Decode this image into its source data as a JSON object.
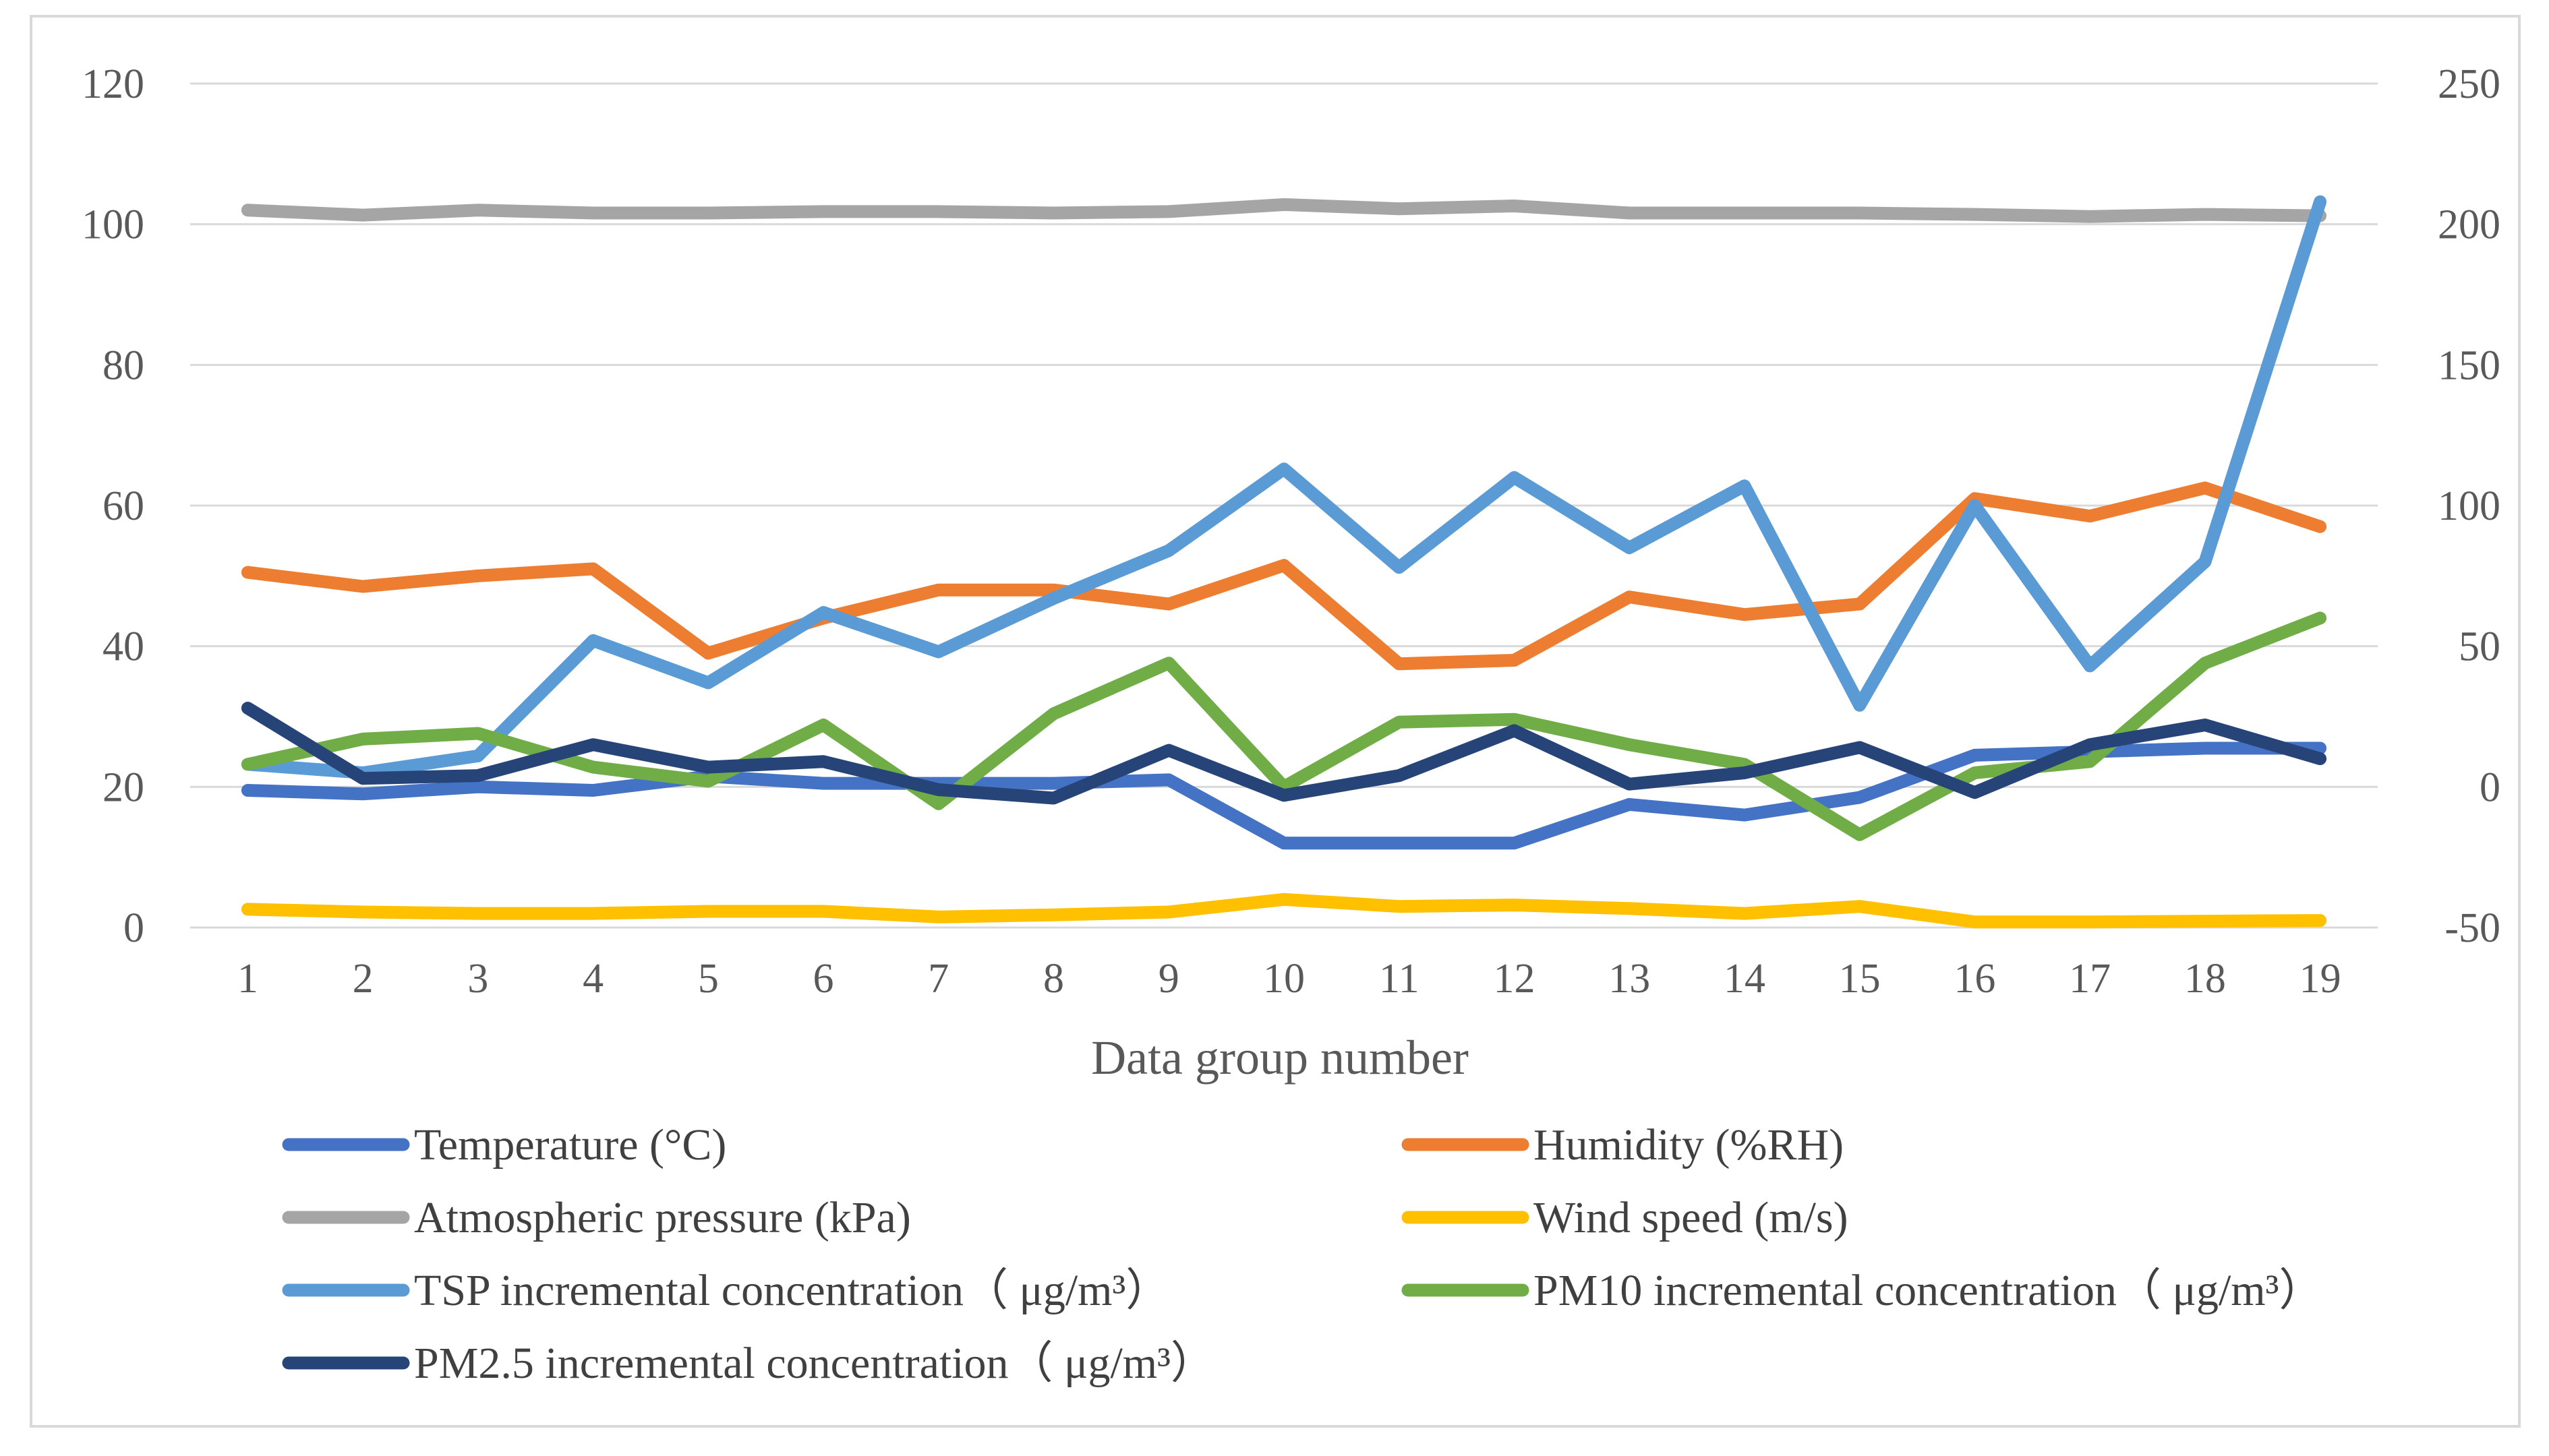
{
  "chart_data": {
    "type": "line",
    "title": "",
    "xlabel": "Data group number",
    "ylabel": "",
    "y2label": "",
    "categories": [
      "1",
      "2",
      "3",
      "4",
      "5",
      "6",
      "7",
      "8",
      "9",
      "10",
      "11",
      "12",
      "13",
      "14",
      "15",
      "16",
      "17",
      "18",
      "19"
    ],
    "ylim": [
      0,
      120
    ],
    "y_ticks": [
      "0",
      "20",
      "40",
      "60",
      "80",
      "100",
      "120"
    ],
    "y2lim": [
      -50,
      250
    ],
    "y2_ticks": [
      "-50",
      "0",
      "50",
      "100",
      "150",
      "200",
      "250"
    ],
    "grid": true,
    "legend_position": "bottom",
    "series": [
      {
        "name": "Temperature (°C)",
        "axis": "left",
        "color": "#4472c4",
        "values": [
          19.5,
          19.0,
          20.0,
          19.5,
          21.5,
          20.5,
          20.5,
          20.5,
          21.0,
          12.0,
          12.0,
          12.0,
          17.5,
          16.0,
          18.5,
          24.5,
          25.0,
          25.5,
          25.5
        ]
      },
      {
        "name": "Humidity (%RH)",
        "axis": "left",
        "color": "#ed7d31",
        "values": [
          50.5,
          48.5,
          50.0,
          51.0,
          39.0,
          44.0,
          48.0,
          48.0,
          46.0,
          51.5,
          37.5,
          38.0,
          47.0,
          44.5,
          46.0,
          61.0,
          58.5,
          62.5,
          57.0
        ]
      },
      {
        "name": "Atmospheric pressure (kPa)",
        "axis": "left",
        "color": "#a5a5a5",
        "values": [
          102.0,
          101.3,
          102.0,
          101.6,
          101.6,
          101.8,
          101.8,
          101.6,
          101.8,
          102.8,
          102.2,
          102.6,
          101.6,
          101.6,
          101.6,
          101.4,
          101.1,
          101.4,
          101.2
        ]
      },
      {
        "name": "Wind speed (m/s)",
        "axis": "left",
        "color": "#ffc000",
        "values": [
          2.6,
          2.2,
          2.0,
          2.0,
          2.3,
          2.3,
          1.5,
          1.8,
          2.2,
          4.0,
          3.0,
          3.2,
          2.7,
          2.0,
          3.0,
          0.8,
          0.8,
          0.9,
          1.0
        ]
      },
      {
        "name": "TSP incremental concentration（ μg/m³）",
        "axis": "right",
        "color": "#5b9bd5",
        "values": [
          8,
          5,
          11,
          52,
          37,
          62,
          48,
          67,
          84,
          113,
          78,
          110,
          85,
          107,
          29,
          100,
          43,
          80,
          208
        ]
      },
      {
        "name": "PM10 incremental concentration（ μg/m³）",
        "axis": "right",
        "color": "#70ad47",
        "values": [
          8,
          17,
          19,
          7,
          2,
          22,
          -6,
          26,
          44,
          0,
          23,
          24,
          15,
          8,
          -17,
          5,
          9,
          44,
          60
        ]
      },
      {
        "name": "PM2.5 incremental concentration（ μg/m³）",
        "axis": "right",
        "color": "#264478",
        "values": [
          28,
          3,
          4,
          15,
          7,
          9,
          -1,
          -4,
          13,
          -3,
          4,
          20,
          1,
          5,
          14,
          -2,
          15,
          22,
          10
        ]
      }
    ]
  }
}
